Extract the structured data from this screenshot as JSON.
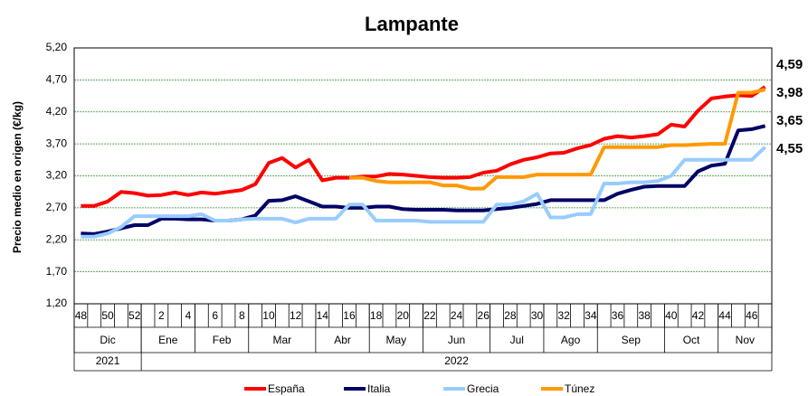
{
  "chart_data": {
    "type": "line",
    "title": "Lampante",
    "y_label": "Precio medio en origen (€/kg)",
    "categories": [
      "48",
      null,
      "50",
      null,
      "52",
      null,
      "2",
      null,
      "4",
      null,
      "6",
      null,
      "8",
      null,
      "10",
      null,
      "12",
      null,
      "14",
      null,
      "16",
      null,
      "18",
      null,
      "20",
      null,
      "22",
      null,
      "24",
      null,
      "26",
      null,
      "28",
      null,
      "30",
      null,
      "32",
      null,
      "34",
      null,
      "36",
      null,
      "38",
      null,
      "40",
      null,
      "42",
      null,
      "44",
      null,
      "46",
      null
    ],
    "months": [
      "Dic",
      "Dic",
      "Dic",
      "Dic",
      "Dic",
      "Ene",
      "Ene",
      "Ene",
      "Ene",
      "Feb",
      "Feb",
      "Feb",
      "Feb",
      "Mar",
      "Mar",
      "Mar",
      "Mar",
      "Mar",
      "Abr",
      "Abr",
      "Abr",
      "Abr",
      "May",
      "May",
      "May",
      "May",
      "Jun",
      "Jun",
      "Jun",
      "Jun",
      "Jun",
      "Jul",
      "Jul",
      "Jul",
      "Jul",
      "Ago",
      "Ago",
      "Ago",
      "Ago",
      "Sep",
      "Sep",
      "Sep",
      "Sep",
      "Sep",
      "Oct",
      "Oct",
      "Oct",
      "Oct",
      "Nov",
      "Nov",
      "Nov",
      "Nov"
    ],
    "years": [
      "2021",
      "2021",
      "2021",
      "2021",
      "2021",
      "2022",
      "2022",
      "2022",
      "2022",
      "2022",
      "2022",
      "2022",
      "2022",
      "2022",
      "2022",
      "2022",
      "2022",
      "2022",
      "2022",
      "2022",
      "2022",
      "2022",
      "2022",
      "2022",
      "2022",
      "2022",
      "2022",
      "2022",
      "2022",
      "2022",
      "2022",
      "2022",
      "2022",
      "2022",
      "2022",
      "2022",
      "2022",
      "2022",
      "2022",
      "2022",
      "2022",
      "2022",
      "2022",
      "2022",
      "2022",
      "2022",
      "2022",
      "2022",
      "2022",
      "2022",
      "2022",
      "2022"
    ],
    "ylim": [
      1.2,
      5.2
    ],
    "yticks": [
      {
        "value": 1.2,
        "label": "1,20"
      },
      {
        "value": 1.7,
        "label": "1,70"
      },
      {
        "value": 2.2,
        "label": "2,20"
      },
      {
        "value": 2.7,
        "label": "2,70"
      },
      {
        "value": 3.2,
        "label": "3,20"
      },
      {
        "value": 3.7,
        "label": "3,70"
      },
      {
        "value": 4.2,
        "label": "4,20"
      },
      {
        "value": 4.7,
        "label": "4,70"
      },
      {
        "value": 5.2,
        "label": "5,20"
      }
    ],
    "grid": true,
    "legend": "bottom",
    "series": [
      {
        "name": "España",
        "color": "#ff0000",
        "values": [
          2.73,
          2.73,
          2.8,
          2.95,
          2.93,
          2.89,
          2.9,
          2.94,
          2.9,
          2.94,
          2.92,
          2.95,
          2.98,
          3.07,
          3.4,
          3.48,
          3.33,
          3.45,
          3.13,
          3.17,
          3.17,
          3.19,
          3.19,
          3.23,
          3.22,
          3.2,
          3.18,
          3.17,
          3.17,
          3.18,
          3.25,
          3.28,
          3.38,
          3.45,
          3.49,
          3.55,
          3.56,
          3.63,
          3.68,
          3.78,
          3.82,
          3.8,
          3.82,
          3.85,
          4.0,
          3.97,
          4.22,
          4.41,
          4.44,
          4.46,
          4.45,
          4.59
        ],
        "value_labels": [
          null,
          null,
          null,
          null,
          null,
          null,
          null,
          null,
          null,
          null,
          null,
          null,
          null,
          null,
          null,
          null,
          null,
          null,
          null,
          null,
          null,
          null,
          null,
          null,
          null,
          null,
          null,
          null,
          null,
          null,
          null,
          null,
          null,
          null,
          null,
          null,
          null,
          null,
          null,
          null,
          null,
          null,
          null,
          null,
          null,
          null,
          null,
          null,
          null,
          null,
          null,
          "4,59"
        ]
      },
      {
        "name": "Italia",
        "color": "#000066",
        "values": [
          2.3,
          2.29,
          2.33,
          2.38,
          2.43,
          2.43,
          2.53,
          2.53,
          2.52,
          2.52,
          2.5,
          2.5,
          2.52,
          2.58,
          2.81,
          2.82,
          2.88,
          2.8,
          2.72,
          2.72,
          2.7,
          2.7,
          2.72,
          2.72,
          2.68,
          2.67,
          2.67,
          2.67,
          2.66,
          2.66,
          2.66,
          2.68,
          2.7,
          2.73,
          2.76,
          2.82,
          2.82,
          2.82,
          2.82,
          2.82,
          2.92,
          2.98,
          3.03,
          3.04,
          3.04,
          3.04,
          3.27,
          3.36,
          3.39,
          3.91,
          3.93,
          3.98
        ],
        "value_labels": [
          null,
          null,
          null,
          null,
          null,
          null,
          null,
          null,
          null,
          null,
          null,
          null,
          null,
          null,
          null,
          null,
          null,
          null,
          null,
          null,
          null,
          null,
          null,
          null,
          null,
          null,
          null,
          null,
          null,
          null,
          null,
          null,
          null,
          null,
          null,
          null,
          null,
          null,
          null,
          null,
          null,
          null,
          null,
          null,
          null,
          null,
          null,
          null,
          null,
          null,
          null,
          "3,98"
        ]
      },
      {
        "name": "Grecia",
        "color": "#99ccff",
        "values": [
          2.25,
          2.25,
          2.3,
          2.4,
          2.57,
          2.57,
          2.57,
          2.57,
          2.57,
          2.6,
          2.5,
          2.5,
          2.52,
          2.53,
          2.53,
          2.53,
          2.47,
          2.53,
          2.53,
          2.53,
          2.75,
          2.75,
          2.5,
          2.5,
          2.5,
          2.5,
          2.48,
          2.48,
          2.48,
          2.48,
          2.48,
          2.75,
          2.75,
          2.8,
          2.92,
          2.55,
          2.55,
          2.6,
          2.6,
          3.08,
          3.08,
          3.1,
          3.1,
          3.12,
          3.2,
          3.45,
          3.45,
          3.45,
          3.45,
          3.45,
          3.45,
          3.65
        ],
        "value_labels": [
          null,
          null,
          null,
          null,
          null,
          null,
          null,
          null,
          null,
          null,
          null,
          null,
          null,
          null,
          null,
          null,
          null,
          null,
          null,
          null,
          null,
          null,
          null,
          null,
          null,
          null,
          null,
          null,
          null,
          null,
          null,
          null,
          null,
          null,
          null,
          null,
          null,
          null,
          null,
          null,
          null,
          null,
          null,
          null,
          null,
          null,
          null,
          null,
          null,
          null,
          null,
          "3,65"
        ]
      },
      {
        "name": "Túnez",
        "color": "#ff9900",
        "values": [
          null,
          null,
          null,
          null,
          null,
          null,
          null,
          null,
          null,
          null,
          null,
          null,
          null,
          null,
          null,
          null,
          null,
          null,
          null,
          null,
          3.17,
          3.17,
          3.12,
          3.1,
          3.1,
          3.1,
          3.1,
          3.05,
          3.05,
          3.0,
          3.0,
          3.18,
          3.18,
          3.18,
          3.22,
          3.22,
          3.22,
          3.22,
          3.22,
          3.65,
          3.65,
          3.65,
          3.65,
          3.65,
          3.68,
          3.68,
          3.69,
          3.7,
          3.7,
          4.5,
          4.5,
          4.55
        ],
        "value_labels": [
          null,
          null,
          null,
          null,
          null,
          null,
          null,
          null,
          null,
          null,
          null,
          null,
          null,
          null,
          null,
          null,
          null,
          null,
          null,
          null,
          null,
          null,
          null,
          null,
          null,
          null,
          null,
          null,
          null,
          null,
          null,
          null,
          null,
          null,
          null,
          null,
          null,
          null,
          null,
          null,
          null,
          null,
          null,
          null,
          null,
          null,
          null,
          null,
          null,
          null,
          null,
          "4,55"
        ]
      }
    ]
  }
}
